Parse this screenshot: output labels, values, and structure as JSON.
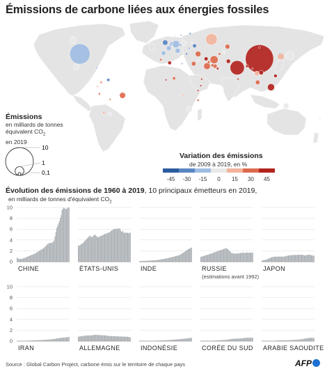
{
  "title": "Émissions de carbone liées aux énergies fossiles",
  "legend_size": {
    "title": "Émissions",
    "subtitle_line1": "en milliards de tonnes",
    "subtitle_line2": "équivalent CO",
    "subtitle_sub": "2",
    "subtitle_line3": "en 2019",
    "values": [
      "10",
      "1",
      "0,1"
    ]
  },
  "legend_variation": {
    "title": "Variation des émissions",
    "subtitle": "de 2009 à 2019, en %",
    "ticks": [
      "-45",
      "-30",
      "-15",
      "0",
      "15",
      "30",
      "45"
    ],
    "colors": [
      "#2b5c9e",
      "#5a86c2",
      "#9fbde2",
      "#e9e9e9",
      "#f2b49d",
      "#dd6a4d",
      "#b3241f"
    ]
  },
  "map_colors": {
    "land": "#e4e4e4",
    "water": "#ffffff"
  },
  "bubbles": [
    {
      "name": "china",
      "lon": 104,
      "lat": 33,
      "value": 10.2,
      "var": 38
    },
    {
      "name": "usa",
      "lon": -98,
      "lat": 39,
      "value": 5.3,
      "var": -8
    },
    {
      "name": "india",
      "lon": 79,
      "lat": 22,
      "value": 2.6,
      "var": 52
    },
    {
      "name": "russia",
      "lon": 50,
      "lat": 57,
      "value": 1.7,
      "var": 8
    },
    {
      "name": "japan",
      "lon": 138,
      "lat": 37,
      "value": 1.1,
      "var": -3
    },
    {
      "name": "iran",
      "lon": 53,
      "lat": 32,
      "value": 0.8,
      "var": 30
    },
    {
      "name": "germany",
      "lon": 10,
      "lat": 51,
      "value": 0.7,
      "var": -15
    },
    {
      "name": "indonesia",
      "lon": 117,
      "lat": -2,
      "value": 0.62,
      "var": 40
    },
    {
      "name": "south-korea",
      "lon": 128,
      "lat": 36,
      "value": 0.61,
      "var": 12
    },
    {
      "name": "saudi-arabia",
      "lon": 45,
      "lat": 24,
      "value": 0.58,
      "var": 30
    },
    {
      "name": "canada",
      "lon": -106,
      "lat": 56,
      "value": 0.58,
      "var": 2
    },
    {
      "name": "south-africa",
      "lon": 25,
      "lat": -29,
      "value": 0.48,
      "var": 3
    },
    {
      "name": "mexico",
      "lon": -102,
      "lat": 23,
      "value": 0.45,
      "var": 5
    },
    {
      "name": "brazil",
      "lon": -50,
      "lat": -12,
      "value": 0.46,
      "var": 25
    },
    {
      "name": "australia",
      "lon": 134,
      "lat": -25,
      "value": 0.41,
      "var": 0
    },
    {
      "name": "turkey",
      "lon": 35,
      "lat": 39,
      "value": 0.4,
      "var": 30
    },
    {
      "name": "uk",
      "lon": -2,
      "lat": 53,
      "value": 0.36,
      "var": -30
    },
    {
      "name": "italy",
      "lon": 12,
      "lat": 43,
      "value": 0.33,
      "var": -18
    },
    {
      "name": "poland",
      "lon": 19,
      "lat": 52,
      "value": 0.32,
      "var": -2
    },
    {
      "name": "france",
      "lon": 2,
      "lat": 46,
      "value": 0.3,
      "var": -20
    },
    {
      "name": "thailand",
      "lon": 101,
      "lat": 15,
      "value": 0.29,
      "var": 20
    },
    {
      "name": "kazakhstan",
      "lon": 68,
      "lat": 48,
      "value": 0.29,
      "var": 25
    },
    {
      "name": "vietnam",
      "lon": 106,
      "lat": 16,
      "value": 0.25,
      "var": 50
    },
    {
      "name": "malaysia",
      "lon": 102,
      "lat": 4,
      "value": 0.25,
      "var": 30
    },
    {
      "name": "egypt",
      "lon": 30,
      "lat": 27,
      "value": 0.25,
      "var": 30
    },
    {
      "name": "spain",
      "lon": -4,
      "lat": 40,
      "value": 0.25,
      "var": -15
    },
    {
      "name": "uae",
      "lon": 54,
      "lat": 24,
      "value": 0.22,
      "var": 35
    },
    {
      "name": "pakistan",
      "lon": 69,
      "lat": 30,
      "value": 0.22,
      "var": 40
    },
    {
      "name": "argentina",
      "lon": -64,
      "lat": -35,
      "value": 0.2,
      "var": 5
    },
    {
      "name": "ukraine",
      "lon": 31,
      "lat": 49,
      "value": 0.2,
      "var": -25
    },
    {
      "name": "iraq",
      "lon": 44,
      "lat": 33,
      "value": 0.2,
      "var": 40
    },
    {
      "name": "venezuela",
      "lon": -66,
      "lat": 7,
      "value": 0.12,
      "var": -35
    },
    {
      "name": "algeria",
      "lon": 3,
      "lat": 28,
      "value": 0.17,
      "var": 40
    },
    {
      "name": "philippines",
      "lon": 122,
      "lat": 12,
      "value": 0.14,
      "var": 45
    },
    {
      "name": "netherlands",
      "lon": 5,
      "lat": 52,
      "value": 0.15,
      "var": -10
    },
    {
      "name": "nigeria",
      "lon": 8,
      "lat": 9,
      "value": 0.12,
      "var": 30
    },
    {
      "name": "bangladesh",
      "lon": 90,
      "lat": 24,
      "value": 0.1,
      "var": 50
    },
    {
      "name": "chile",
      "lon": -71,
      "lat": -33,
      "value": 0.09,
      "var": 20
    },
    {
      "name": "colombia",
      "lon": -74,
      "lat": 4,
      "value": 0.1,
      "var": 20
    },
    {
      "name": "uzbekistan",
      "lon": 64,
      "lat": 41,
      "value": 0.11,
      "var": 0
    },
    {
      "name": "qatar",
      "lon": 51,
      "lat": 25,
      "value": 0.11,
      "var": 30
    },
    {
      "name": "kuwait",
      "lon": 47,
      "lat": 29,
      "value": 0.1,
      "var": 25
    },
    {
      "name": "turkmenistan",
      "lon": 59,
      "lat": 39,
      "value": 0.08,
      "var": 25
    },
    {
      "name": "belgium",
      "lon": 4,
      "lat": 50,
      "value": 0.09,
      "var": -15
    },
    {
      "name": "czechia",
      "lon": 15,
      "lat": 50,
      "value": 0.1,
      "var": -12
    },
    {
      "name": "romania",
      "lon": 25,
      "lat": 46,
      "value": 0.07,
      "var": -15
    },
    {
      "name": "greece",
      "lon": 22,
      "lat": 39,
      "value": 0.06,
      "var": -30
    },
    {
      "name": "belarus",
      "lon": 28,
      "lat": 53,
      "value": 0.06,
      "var": -5
    },
    {
      "name": "morocco",
      "lon": -7,
      "lat": 32,
      "value": 0.07,
      "var": 35
    },
    {
      "name": "peru",
      "lon": -76,
      "lat": -10,
      "value": 0.06,
      "var": 30
    },
    {
      "name": "ecuador",
      "lon": -78,
      "lat": -1,
      "value": 0.04,
      "var": 15
    },
    {
      "name": "cuba",
      "lon": -79,
      "lat": 22,
      "value": 0.03,
      "var": -10
    },
    {
      "name": "israel",
      "lon": 35,
      "lat": 31,
      "value": 0.06,
      "var": 0
    },
    {
      "name": "oman",
      "lon": 57,
      "lat": 21,
      "value": 0.07,
      "var": 45
    },
    {
      "name": "libya",
      "lon": 17,
      "lat": 27,
      "value": 0.05,
      "var": -20
    },
    {
      "name": "myanmar",
      "lon": 96,
      "lat": 21,
      "value": 0.04,
      "var": 50
    },
    {
      "name": "mongolia",
      "lon": 104,
      "lat": 47,
      "value": 0.05,
      "var": 40
    },
    {
      "name": "north-korea",
      "lon": 127,
      "lat": 40,
      "value": 0.05,
      "var": -20
    },
    {
      "name": "new-zealand",
      "lon": 172,
      "lat": -41,
      "value": 0.035,
      "var": 0
    },
    {
      "name": "sweden",
      "lon": 16,
      "lat": 62,
      "value": 0.04,
      "var": -20
    },
    {
      "name": "norway",
      "lon": 9,
      "lat": 61,
      "value": 0.045,
      "var": 0
    },
    {
      "name": "finland",
      "lon": 26,
      "lat": 64,
      "value": 0.04,
      "var": -25
    },
    {
      "name": "angola",
      "lon": 18,
      "lat": -12,
      "value": 0.03,
      "var": 20
    },
    {
      "name": "kenya",
      "lon": 38,
      "lat": 0,
      "value": 0.02,
      "var": 45
    },
    {
      "name": "ethiopia",
      "lon": 39,
      "lat": 8,
      "value": 0.018,
      "var": 50
    },
    {
      "name": "tanzania",
      "lon": 35,
      "lat": -6,
      "value": 0.012,
      "var": 45
    },
    {
      "name": "mozambique",
      "lon": 35,
      "lat": -18,
      "value": 0.008,
      "var": 40
    },
    {
      "name": "bolivia",
      "lon": -64,
      "lat": -17,
      "value": 0.022,
      "var": 35
    },
    {
      "name": "ghana",
      "lon": -1,
      "lat": 7,
      "value": 0.016,
      "var": 40
    },
    {
      "name": "sri-lanka",
      "lon": 80,
      "lat": 8,
      "value": 0.02,
      "var": 40
    }
  ],
  "evolution": {
    "title": "Évolution des émissions de 1960 à 2019",
    "title_suffix": ", 10 principaux émetteurs en 2019,",
    "subtitle": "en milliards de tonnes d'équivalent CO",
    "subtitle_sub": "2"
  },
  "chart_data": {
    "type": "bar",
    "x_range": [
      1960,
      2019
    ],
    "ylim": [
      0,
      10
    ],
    "yticks": [
      0,
      2,
      4,
      6,
      8,
      10
    ],
    "series": [
      {
        "name": "CHINE",
        "keys": [
          [
            1960,
            0.78
          ],
          [
            1961,
            0.55
          ],
          [
            1965,
            0.5
          ],
          [
            1970,
            0.8
          ],
          [
            1975,
            1.15
          ],
          [
            1980,
            1.47
          ],
          [
            1985,
            1.99
          ],
          [
            1990,
            2.48
          ],
          [
            1995,
            3.3
          ],
          [
            1997,
            3.45
          ],
          [
            2000,
            3.5
          ],
          [
            2002,
            3.9
          ],
          [
            2005,
            6.2
          ],
          [
            2008,
            7.5
          ],
          [
            2010,
            8.6
          ],
          [
            2011,
            9.5
          ],
          [
            2013,
            9.98
          ],
          [
            2015,
            9.7
          ],
          [
            2016,
            9.7
          ],
          [
            2017,
            9.85
          ],
          [
            2018,
            10.05
          ],
          [
            2019,
            10.18
          ]
        ]
      },
      {
        "name": "ÉTATS-UNIS",
        "keys": [
          [
            1960,
            2.9
          ],
          [
            1965,
            3.4
          ],
          [
            1970,
            4.3
          ],
          [
            1973,
            4.8
          ],
          [
            1975,
            4.5
          ],
          [
            1979,
            5.0
          ],
          [
            1982,
            4.5
          ],
          [
            1985,
            4.7
          ],
          [
            1990,
            5.1
          ],
          [
            1995,
            5.4
          ],
          [
            2000,
            6.0
          ],
          [
            2005,
            6.1
          ],
          [
            2007,
            6.15
          ],
          [
            2009,
            5.5
          ],
          [
            2010,
            5.7
          ],
          [
            2012,
            5.3
          ],
          [
            2015,
            5.4
          ],
          [
            2017,
            5.2
          ],
          [
            2018,
            5.4
          ],
          [
            2019,
            5.3
          ]
        ]
      },
      {
        "name": "INDE",
        "keys": [
          [
            1960,
            0.12
          ],
          [
            1970,
            0.2
          ],
          [
            1980,
            0.3
          ],
          [
            1990,
            0.58
          ],
          [
            2000,
            0.98
          ],
          [
            2005,
            1.2
          ],
          [
            2010,
            1.7
          ],
          [
            2015,
            2.3
          ],
          [
            2019,
            2.62
          ]
        ]
      },
      {
        "name": "RUSSIE",
        "note": "(estimations avant 1992)",
        "keys": [
          [
            1960,
            0.9
          ],
          [
            1970,
            1.4
          ],
          [
            1980,
            2.0
          ],
          [
            1989,
            2.5
          ],
          [
            1990,
            2.4
          ],
          [
            1992,
            2.1
          ],
          [
            1995,
            1.6
          ],
          [
            1998,
            1.5
          ],
          [
            2000,
            1.5
          ],
          [
            2005,
            1.6
          ],
          [
            2008,
            1.7
          ],
          [
            2009,
            1.6
          ],
          [
            2012,
            1.7
          ],
          [
            2015,
            1.65
          ],
          [
            2019,
            1.68
          ]
        ]
      },
      {
        "name": "JAPON",
        "keys": [
          [
            1960,
            0.23
          ],
          [
            1965,
            0.4
          ],
          [
            1970,
            0.76
          ],
          [
            1973,
            0.92
          ],
          [
            1980,
            0.95
          ],
          [
            1985,
            0.93
          ],
          [
            1990,
            1.16
          ],
          [
            1995,
            1.23
          ],
          [
            2000,
            1.26
          ],
          [
            2005,
            1.29
          ],
          [
            2009,
            1.16
          ],
          [
            2013,
            1.32
          ],
          [
            2019,
            1.11
          ]
        ]
      },
      {
        "name": "IRAN",
        "keys": [
          [
            1960,
            0.03
          ],
          [
            1970,
            0.07
          ],
          [
            1980,
            0.13
          ],
          [
            1990,
            0.21
          ],
          [
            2000,
            0.34
          ],
          [
            2005,
            0.47
          ],
          [
            2010,
            0.6
          ],
          [
            2015,
            0.66
          ],
          [
            2019,
            0.78
          ]
        ]
      },
      {
        "name": "ALLEMAGNE",
        "keys": [
          [
            1960,
            0.81
          ],
          [
            1965,
            0.95
          ],
          [
            1970,
            1.03
          ],
          [
            1975,
            1.05
          ],
          [
            1979,
            1.15
          ],
          [
            1985,
            1.09
          ],
          [
            1990,
            1.05
          ],
          [
            1995,
            0.93
          ],
          [
            2000,
            0.9
          ],
          [
            2005,
            0.86
          ],
          [
            2010,
            0.83
          ],
          [
            2015,
            0.8
          ],
          [
            2019,
            0.7
          ]
        ]
      },
      {
        "name": "INDONÉSIE",
        "keys": [
          [
            1960,
            0.02
          ],
          [
            1970,
            0.035
          ],
          [
            1980,
            0.09
          ],
          [
            1990,
            0.15
          ],
          [
            2000,
            0.28
          ],
          [
            2005,
            0.34
          ],
          [
            2010,
            0.43
          ],
          [
            2015,
            0.51
          ],
          [
            2019,
            0.62
          ]
        ]
      },
      {
        "name": "CORÉE DU SUD",
        "keys": [
          [
            1960,
            0.01
          ],
          [
            1970,
            0.05
          ],
          [
            1980,
            0.13
          ],
          [
            1990,
            0.25
          ],
          [
            1995,
            0.39
          ],
          [
            2000,
            0.45
          ],
          [
            2005,
            0.48
          ],
          [
            2010,
            0.59
          ],
          [
            2015,
            0.62
          ],
          [
            2019,
            0.61
          ]
        ]
      },
      {
        "name": "ARABIE SAOUDITE",
        "keys": [
          [
            1960,
            0.003
          ],
          [
            1970,
            0.03
          ],
          [
            1980,
            0.13
          ],
          [
            1990,
            0.16
          ],
          [
            2000,
            0.26
          ],
          [
            2005,
            0.33
          ],
          [
            2010,
            0.5
          ],
          [
            2015,
            0.61
          ],
          [
            2019,
            0.58
          ]
        ]
      }
    ]
  },
  "source": "Source : Global Carbon Project, carbone émis sur le territoire de chaque pays",
  "agency": "AFP"
}
